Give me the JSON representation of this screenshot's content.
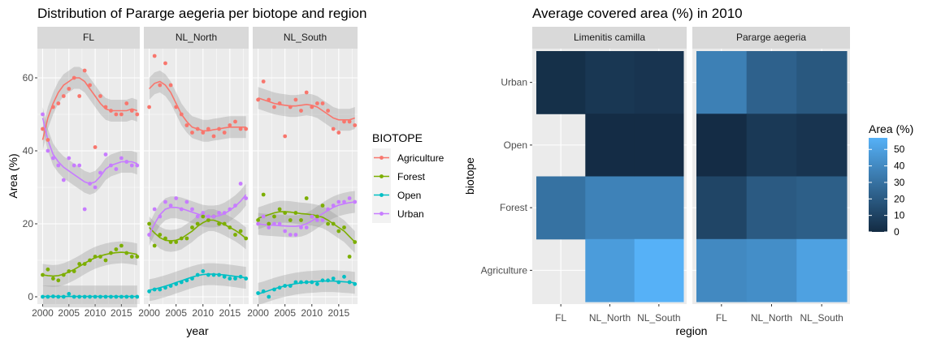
{
  "chart_data": [
    {
      "type": "scatter",
      "title": "Distribution of Pararge aegeria per biotope and region",
      "xlabel": "year",
      "ylabel": "Area (%)",
      "xlim": [
        1999,
        2018.5
      ],
      "ylim": [
        -2,
        68
      ],
      "xticks": [
        "2000",
        "2005",
        "2010",
        "2015"
      ],
      "yticks": [
        "0",
        "20",
        "40",
        "60"
      ],
      "facets": [
        "FL",
        "NL_North",
        "NL_South"
      ],
      "legend": {
        "title": "BIOTOPE",
        "position": "right",
        "entries": [
          "Agriculture",
          "Forest",
          "Open",
          "Urban"
        ]
      },
      "colors": {
        "Agriculture": "#F8766D",
        "Forest": "#7CAE00",
        "Open": "#00BFC4",
        "Urban": "#C77CFF"
      },
      "series": [
        {
          "facet": "FL",
          "name": "Agriculture",
          "x": [
            2000,
            2001,
            2002,
            2003,
            2004,
            2005,
            2006,
            2007,
            2008,
            2009,
            2010,
            2011,
            2012,
            2013,
            2014,
            2015,
            2016,
            2017,
            2018
          ],
          "y": [
            46,
            43,
            52,
            53,
            55,
            57,
            60,
            55,
            62,
            58,
            41,
            55,
            52,
            51,
            50,
            50,
            53,
            51,
            50
          ],
          "smooth": [
            43,
            49,
            53,
            56,
            58,
            59,
            60,
            60,
            59,
            57,
            55,
            53,
            51.5,
            51,
            51,
            51,
            51,
            51.5,
            51
          ]
        },
        {
          "facet": "FL",
          "name": "Forest",
          "x": [
            2000,
            2001,
            2002,
            2003,
            2004,
            2005,
            2006,
            2007,
            2008,
            2009,
            2010,
            2011,
            2012,
            2013,
            2014,
            2015,
            2016,
            2017,
            2018
          ],
          "y": [
            6,
            7.5,
            5,
            4.5,
            6,
            7,
            7,
            9,
            9,
            10,
            11,
            11,
            10,
            12,
            13,
            14,
            12,
            11,
            11
          ],
          "smooth": [
            6,
            5.8,
            5.7,
            5.8,
            6.2,
            6.8,
            7.5,
            8.3,
            9.2,
            10,
            10.7,
            11.2,
            11.6,
            11.9,
            12.1,
            12.2,
            12.1,
            11.9,
            11.6
          ]
        },
        {
          "facet": "FL",
          "name": "Open",
          "x": [
            2000,
            2001,
            2002,
            2003,
            2004,
            2005,
            2006,
            2007,
            2008,
            2009,
            2010,
            2011,
            2012,
            2013,
            2014,
            2015,
            2016,
            2017,
            2018
          ],
          "y": [
            0,
            0,
            0.1,
            0,
            0,
            0.8,
            0,
            0,
            0,
            0,
            0,
            0,
            0,
            0,
            0,
            0,
            0,
            0,
            0
          ],
          "smooth": [
            0.1,
            0.1,
            0.1,
            0.1,
            0.1,
            0.1,
            0.1,
            0.1,
            0.1,
            0.1,
            0.1,
            0.1,
            0.1,
            0.1,
            0.1,
            0.1,
            0.1,
            0.1,
            0.1
          ]
        },
        {
          "facet": "FL",
          "name": "Urban",
          "x": [
            2000,
            2001,
            2002,
            2003,
            2004,
            2005,
            2006,
            2007,
            2008,
            2009,
            2010,
            2011,
            2012,
            2013,
            2014,
            2015,
            2016,
            2017,
            2018
          ],
          "y": [
            50,
            40,
            38,
            36,
            32,
            38,
            36,
            36,
            24,
            31,
            30,
            34,
            39,
            36,
            35,
            38,
            37,
            36,
            36
          ],
          "smooth": [
            49,
            43,
            39,
            37,
            35.5,
            34.5,
            33.5,
            32.5,
            31.5,
            31,
            31.5,
            33,
            35,
            36,
            36.5,
            37,
            37,
            37,
            36.5
          ]
        },
        {
          "facet": "NL_North",
          "name": "Agriculture",
          "x": [
            2000,
            2001,
            2002,
            2003,
            2004,
            2005,
            2006,
            2007,
            2008,
            2009,
            2010,
            2011,
            2012,
            2013,
            2014,
            2015,
            2016,
            2017,
            2018
          ],
          "y": [
            52,
            66,
            58,
            64,
            58,
            52,
            50,
            47,
            45,
            46,
            45,
            46,
            44,
            46,
            45,
            47,
            48,
            46,
            46
          ],
          "smooth": [
            57,
            58.5,
            59,
            58,
            56,
            53,
            50,
            48,
            46.5,
            46,
            45.5,
            45.5,
            45.8,
            46,
            46.3,
            46.5,
            46.5,
            46.5,
            46.5
          ]
        },
        {
          "facet": "NL_North",
          "name": "Forest",
          "x": [
            2000,
            2001,
            2002,
            2003,
            2004,
            2005,
            2006,
            2007,
            2008,
            2009,
            2010,
            2011,
            2012,
            2013,
            2014,
            2015,
            2016,
            2017,
            2018
          ],
          "y": [
            20,
            14,
            17,
            16,
            15,
            15,
            16,
            16,
            19,
            20,
            22,
            21,
            22,
            20,
            20,
            19,
            17,
            18,
            16
          ],
          "smooth": [
            19,
            17.5,
            16.2,
            15.5,
            15.3,
            15.5,
            16,
            17,
            18,
            19.3,
            20.3,
            21,
            21,
            20.5,
            19.8,
            19,
            18.2,
            17.2,
            16
          ]
        },
        {
          "facet": "NL_North",
          "name": "Open",
          "x": [
            2000,
            2001,
            2002,
            2003,
            2004,
            2005,
            2006,
            2007,
            2008,
            2009,
            2010,
            2011,
            2012,
            2013,
            2014,
            2015,
            2016,
            2017,
            2018
          ],
          "y": [
            1.5,
            2,
            2,
            2.5,
            3,
            3.5,
            4,
            4.5,
            5,
            6,
            7,
            6,
            6,
            6,
            5.5,
            5,
            5,
            5.5,
            5
          ],
          "smooth": [
            1.8,
            2.1,
            2.5,
            2.9,
            3.4,
            3.9,
            4.4,
            4.9,
            5.4,
            5.8,
            6.1,
            6.2,
            6.2,
            6.1,
            6,
            5.8,
            5.6,
            5.4,
            5.2
          ]
        },
        {
          "facet": "NL_North",
          "name": "Urban",
          "x": [
            2000,
            2001,
            2002,
            2003,
            2004,
            2005,
            2006,
            2007,
            2008,
            2009,
            2010,
            2011,
            2012,
            2013,
            2014,
            2015,
            2016,
            2017,
            2018
          ],
          "y": [
            17,
            24,
            22,
            26,
            25,
            27,
            24,
            26,
            24,
            22,
            23,
            22,
            22,
            23,
            23,
            24,
            25,
            31,
            27
          ],
          "smooth": [
            17,
            20,
            22.5,
            24,
            24.5,
            24.5,
            24.2,
            23.7,
            23.2,
            22.7,
            22.2,
            22,
            22,
            22.2,
            22.8,
            23.7,
            24.8,
            26.2,
            28
          ]
        },
        {
          "facet": "NL_South",
          "name": "Agriculture",
          "x": [
            2000,
            2001,
            2002,
            2003,
            2004,
            2005,
            2006,
            2007,
            2008,
            2009,
            2010,
            2011,
            2012,
            2013,
            2014,
            2015,
            2016,
            2017,
            2018
          ],
          "y": [
            54,
            59,
            54,
            52,
            53,
            44,
            52,
            54,
            51,
            56,
            52,
            53,
            53,
            51,
            46,
            45,
            48,
            48,
            47
          ],
          "smooth": [
            54.5,
            54,
            53.5,
            53,
            52.7,
            52.5,
            52.3,
            52.3,
            52.5,
            52.7,
            52.5,
            52,
            51,
            50,
            49,
            48.5,
            48.5,
            48.5,
            49
          ]
        },
        {
          "facet": "NL_South",
          "name": "Forest",
          "x": [
            2000,
            2001,
            2002,
            2003,
            2004,
            2005,
            2006,
            2007,
            2008,
            2009,
            2010,
            2011,
            2012,
            2013,
            2014,
            2015,
            2016,
            2017,
            2018
          ],
          "y": [
            21,
            28,
            20,
            22,
            24,
            23,
            21,
            23,
            21,
            27,
            22,
            22,
            25,
            20,
            20,
            18,
            19,
            11,
            15
          ],
          "smooth": [
            21.5,
            22,
            22.5,
            23,
            23.3,
            23.3,
            23.2,
            23,
            22.8,
            22.7,
            22.5,
            22.2,
            21.8,
            21,
            20,
            19,
            18,
            16.5,
            15
          ]
        },
        {
          "facet": "NL_South",
          "name": "Open",
          "x": [
            2000,
            2001,
            2002,
            2003,
            2004,
            2005,
            2006,
            2007,
            2008,
            2009,
            2010,
            2011,
            2012,
            2013,
            2014,
            2015,
            2016,
            2017,
            2018
          ],
          "y": [
            1,
            1.5,
            0,
            2,
            2.5,
            3,
            3,
            4,
            4,
            4,
            4,
            3.5,
            4.5,
            4.5,
            5,
            4,
            5.5,
            4,
            3.5
          ],
          "smooth": [
            0.8,
            1.2,
            1.7,
            2.2,
            2.6,
            3,
            3.3,
            3.6,
            3.8,
            4,
            4.1,
            4.2,
            4.3,
            4.3,
            4.3,
            4.2,
            4.1,
            4,
            3.8
          ]
        },
        {
          "facet": "NL_South",
          "name": "Urban",
          "x": [
            2000,
            2001,
            2002,
            2003,
            2004,
            2005,
            2006,
            2007,
            2008,
            2009,
            2010,
            2011,
            2012,
            2013,
            2014,
            2015,
            2016,
            2017,
            2018
          ],
          "y": [
            20,
            22,
            19,
            20,
            20,
            18,
            17,
            17,
            19,
            19,
            22,
            21,
            21,
            24,
            25,
            26,
            26,
            27,
            26
          ],
          "smooth": [
            20,
            19.8,
            19.7,
            19.6,
            19.5,
            19.4,
            19.3,
            19.3,
            19.5,
            20,
            20.8,
            21.8,
            22.8,
            23.7,
            24.5,
            25.1,
            25.5,
            25.8,
            26
          ]
        }
      ]
    },
    {
      "type": "heatmap",
      "title": "Average covered area (%) in 2010",
      "xlabel": "region",
      "ylabel": "biotope",
      "facets": [
        "Limenitis camilla",
        "Pararge aegeria"
      ],
      "regions": [
        "FL",
        "NL_North",
        "NL_South"
      ],
      "biotopes": [
        "Urban",
        "Open",
        "Forest",
        "Agriculture"
      ],
      "legend": {
        "title": "Area (%)",
        "position": "right",
        "breaks": [
          "50",
          "40",
          "30",
          "20",
          "10",
          "0"
        ],
        "low_color": "#132B43",
        "high_color": "#56B1F7",
        "range": [
          0,
          57
        ]
      },
      "cells": [
        {
          "facet": "Limenitis camilla",
          "biotope": "Urban",
          "region": "FL",
          "value": 2
        },
        {
          "facet": "Limenitis camilla",
          "biotope": "Urban",
          "region": "NL_North",
          "value": 5
        },
        {
          "facet": "Limenitis camilla",
          "biotope": "Urban",
          "region": "NL_South",
          "value": 4
        },
        {
          "facet": "Limenitis camilla",
          "biotope": "Open",
          "region": "NL_North",
          "value": 0.5
        },
        {
          "facet": "Limenitis camilla",
          "biotope": "Open",
          "region": "NL_South",
          "value": 0.5
        },
        {
          "facet": "Limenitis camilla",
          "biotope": "Forest",
          "region": "FL",
          "value": 30
        },
        {
          "facet": "Limenitis camilla",
          "biotope": "Forest",
          "region": "NL_North",
          "value": 37
        },
        {
          "facet": "Limenitis camilla",
          "biotope": "Forest",
          "region": "NL_South",
          "value": 37
        },
        {
          "facet": "Limenitis camilla",
          "biotope": "Agriculture",
          "region": "NL_North",
          "value": 48
        },
        {
          "facet": "Limenitis camilla",
          "biotope": "Agriculture",
          "region": "NL_South",
          "value": 57
        },
        {
          "facet": "Pararge aegeria",
          "biotope": "Urban",
          "region": "FL",
          "value": 36
        },
        {
          "facet": "Pararge aegeria",
          "biotope": "Urban",
          "region": "NL_North",
          "value": 23
        },
        {
          "facet": "Pararge aegeria",
          "biotope": "Urban",
          "region": "NL_South",
          "value": 19
        },
        {
          "facet": "Pararge aegeria",
          "biotope": "Open",
          "region": "FL",
          "value": 0.5
        },
        {
          "facet": "Pararge aegeria",
          "biotope": "Open",
          "region": "NL_North",
          "value": 6
        },
        {
          "facet": "Pararge aegeria",
          "biotope": "Open",
          "region": "NL_South",
          "value": 4
        },
        {
          "facet": "Pararge aegeria",
          "biotope": "Forest",
          "region": "FL",
          "value": 11
        },
        {
          "facet": "Pararge aegeria",
          "biotope": "Forest",
          "region": "NL_North",
          "value": 20
        },
        {
          "facet": "Pararge aegeria",
          "biotope": "Forest",
          "region": "NL_South",
          "value": 22
        },
        {
          "facet": "Pararge aegeria",
          "biotope": "Agriculture",
          "region": "FL",
          "value": 40
        },
        {
          "facet": "Pararge aegeria",
          "biotope": "Agriculture",
          "region": "NL_North",
          "value": 42
        },
        {
          "facet": "Pararge aegeria",
          "biotope": "Agriculture",
          "region": "NL_South",
          "value": 50
        }
      ]
    }
  ]
}
